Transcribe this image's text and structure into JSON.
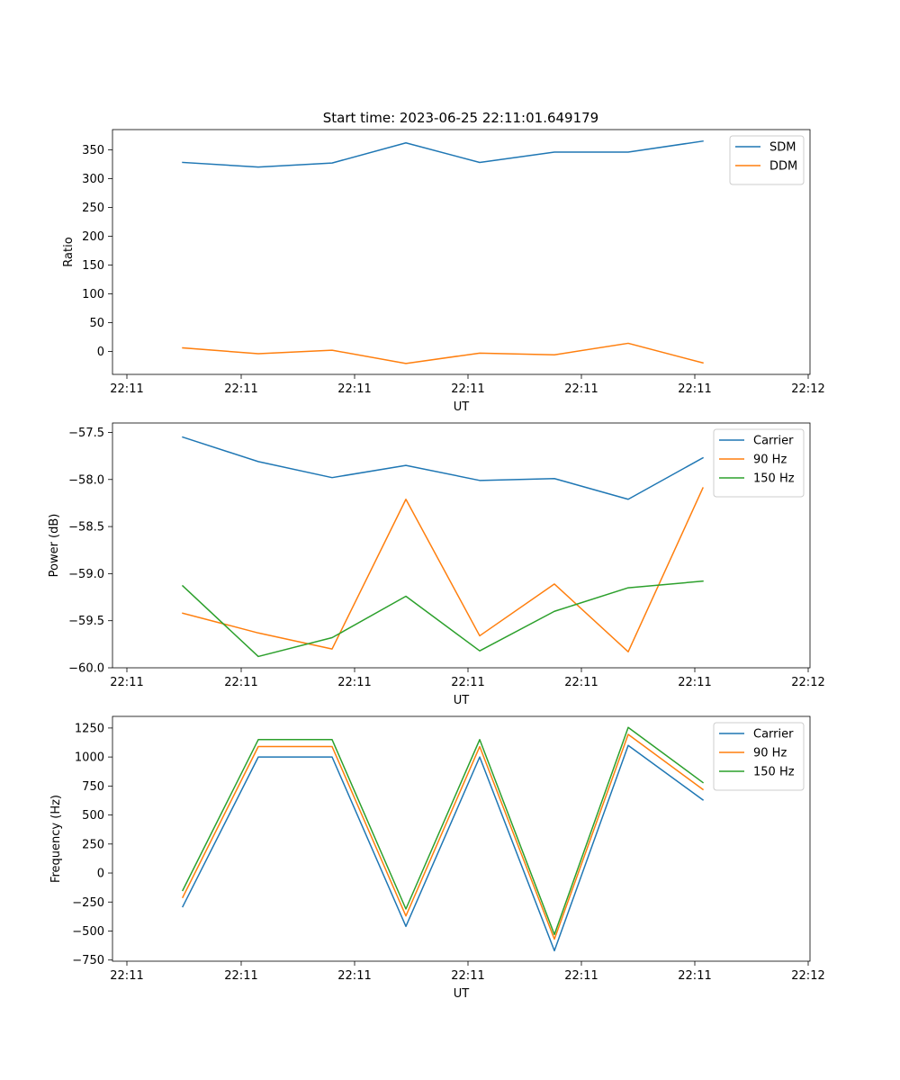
{
  "title": "Start time: 2023-06-25 22:11:01.649179",
  "colors": {
    "blue": "#1f77b4",
    "orange": "#ff7f0e",
    "green": "#2ca02c"
  },
  "chart_data": [
    {
      "type": "line",
      "xlabel": "UT",
      "ylabel": "Ratio",
      "x_tick_labels": [
        "22:11",
        "22:11",
        "22:11",
        "22:11",
        "22:11",
        "22:11",
        "22:12"
      ],
      "y_ticks": [
        0,
        50,
        100,
        150,
        200,
        250,
        300,
        350
      ],
      "y_tick_labels": [
        "0",
        "50",
        "100",
        "150",
        "200",
        "250",
        "300",
        "350"
      ],
      "ylim": [
        -40,
        385
      ],
      "legend_position": "upper right",
      "series": [
        {
          "name": "SDM",
          "color": "#1f77b4",
          "values": [
            328,
            320,
            327,
            362,
            328,
            346,
            346,
            365
          ]
        },
        {
          "name": "DDM",
          "color": "#ff7f0e",
          "values": [
            6,
            -4,
            2,
            -21,
            -3,
            -6,
            14,
            -20
          ]
        }
      ]
    },
    {
      "type": "line",
      "xlabel": "UT",
      "ylabel": "Power (dB)",
      "x_tick_labels": [
        "22:11",
        "22:11",
        "22:11",
        "22:11",
        "22:11",
        "22:11",
        "22:12"
      ],
      "y_ticks": [
        -57.5,
        -58.0,
        -58.5,
        -59.0,
        -59.5,
        -60.0
      ],
      "y_tick_labels": [
        "−57.5",
        "−58.0",
        "−58.5",
        "−59.0",
        "−59.5",
        "−60.0"
      ],
      "ylim": [
        -60.0,
        -57.4
      ],
      "legend_position": "upper right",
      "series": [
        {
          "name": "Carrier",
          "color": "#1f77b4",
          "values": [
            -57.55,
            -57.81,
            -57.98,
            -57.85,
            -58.01,
            -57.99,
            -58.21,
            -57.77
          ]
        },
        {
          "name": "90 Hz",
          "color": "#ff7f0e",
          "values": [
            -59.42,
            -59.63,
            -59.8,
            -58.21,
            -59.66,
            -59.11,
            -59.83,
            -58.09
          ]
        },
        {
          "name": "150 Hz",
          "color": "#2ca02c",
          "values": [
            -59.13,
            -59.88,
            -59.68,
            -59.24,
            -59.82,
            -59.4,
            -59.15,
            -59.08
          ]
        }
      ]
    },
    {
      "type": "line",
      "xlabel": "UT",
      "ylabel": "Frequency (Hz)",
      "x_tick_labels": [
        "22:11",
        "22:11",
        "22:11",
        "22:11",
        "22:11",
        "22:11",
        "22:12"
      ],
      "y_ticks": [
        1250,
        1000,
        750,
        500,
        250,
        0,
        -250,
        -500,
        -750
      ],
      "y_tick_labels": [
        "1250",
        "1000",
        "750",
        "500",
        "250",
        "0",
        "−250",
        "−500",
        "−750"
      ],
      "ylim": [
        -760,
        1350
      ],
      "legend_position": "upper right",
      "series": [
        {
          "name": "Carrier",
          "color": "#1f77b4",
          "values": [
            -290,
            1000,
            1000,
            -460,
            1000,
            -670,
            1100,
            630
          ]
        },
        {
          "name": "90 Hz",
          "color": "#ff7f0e",
          "values": [
            -210,
            1090,
            1090,
            -370,
            1090,
            -570,
            1195,
            720
          ]
        },
        {
          "name": "150 Hz",
          "color": "#2ca02c",
          "values": [
            -150,
            1150,
            1150,
            -310,
            1150,
            -530,
            1255,
            780
          ]
        }
      ]
    }
  ]
}
